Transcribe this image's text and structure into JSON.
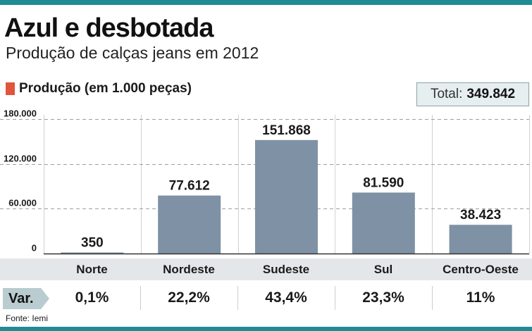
{
  "headline": "Azul e desbotada",
  "subtitle": "Produção de calças jeans em 2012",
  "legend": {
    "label": "Produção (em 1.000 peças)",
    "color": "#e0553c"
  },
  "total": {
    "label": "Total:",
    "value": "349.842"
  },
  "chart_data": {
    "type": "bar",
    "categories": [
      "Norte",
      "Nordeste",
      "Sudeste",
      "Sul",
      "Centro-Oeste"
    ],
    "values": [
      350,
      77612,
      151868,
      81590,
      38423
    ],
    "value_labels": [
      "350",
      "77.612",
      "151.868",
      "81.590",
      "38.423"
    ],
    "ylim": [
      0,
      180000
    ],
    "yticks": [
      0,
      60000,
      120000,
      180000
    ],
    "ytick_labels": [
      "0",
      "60.000",
      "120.000",
      "180.000"
    ],
    "grid": "dashed-horizontal",
    "bar_color": "#7f91a4"
  },
  "variation": {
    "label": "Var.",
    "values": [
      "0,1%",
      "22,2%",
      "43,4%",
      "23,3%",
      "11%"
    ]
  },
  "source": "Fonte: Iemi",
  "colors": {
    "accent": "#1d8c94",
    "bar": "#7f91a4",
    "legend_swatch": "#e0553c",
    "total_box": "#e6eeef"
  }
}
